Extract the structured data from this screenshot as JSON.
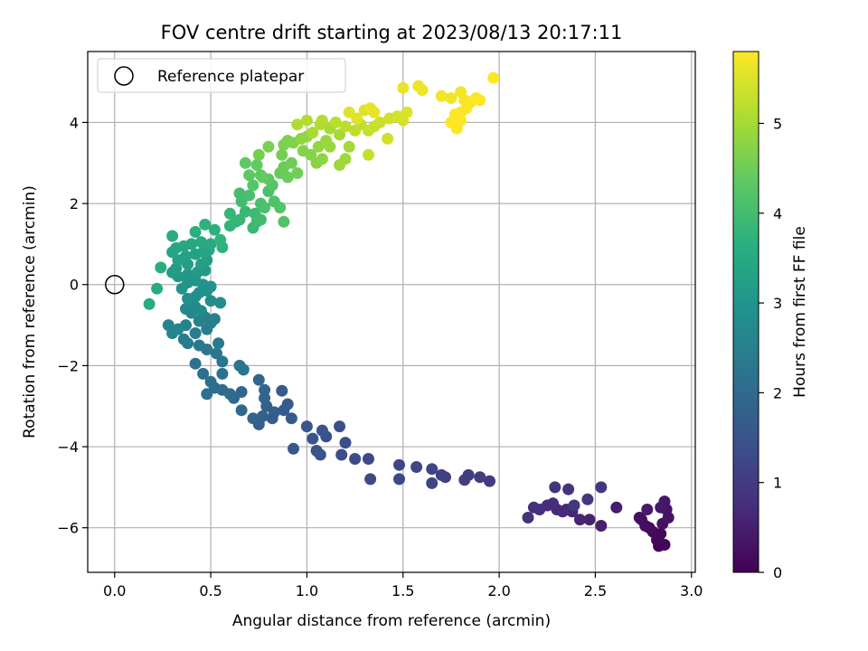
{
  "chart_data": {
    "type": "scatter",
    "title": "FOV centre drift starting at 2023/08/13 20:17:11",
    "xlabel": "Angular distance from reference (arcmin)",
    "ylabel": "Rotation from reference (arcmin)",
    "xlim": [
      -0.14,
      3.02
    ],
    "ylim": [
      -7.1,
      5.75
    ],
    "xticks": [
      "0.0",
      "0.5",
      "1.0",
      "1.5",
      "2.0",
      "2.5",
      "3.0"
    ],
    "xtick_values": [
      0,
      0.5,
      1.0,
      1.5,
      2.0,
      2.5,
      3.0
    ],
    "yticks": [
      "−6",
      "−4",
      "−2",
      "0",
      "2",
      "4"
    ],
    "ytick_values": [
      -6,
      -4,
      -2,
      0,
      2,
      4
    ],
    "grid": true,
    "legend": {
      "placement": "top-left",
      "entries": [
        {
          "label": "Reference platepar",
          "marker": "open-circle"
        }
      ]
    },
    "reference_point": {
      "x": 0,
      "y": 0
    },
    "colorbar": {
      "label": "Hours from first FF file",
      "colormap": "viridis",
      "range": [
        0,
        5.8
      ],
      "ticks": [
        "0",
        "1",
        "2",
        "3",
        "4",
        "5"
      ],
      "tick_values": [
        0,
        1,
        2,
        3,
        4,
        5
      ]
    },
    "points": [
      [
        2.83,
        -6.45,
        0.0
      ],
      [
        2.86,
        -6.42,
        0.05
      ],
      [
        2.82,
        -6.3,
        0.1
      ],
      [
        2.84,
        -6.15,
        0.12
      ],
      [
        2.8,
        -6.1,
        0.15
      ],
      [
        2.78,
        -6.0,
        0.18
      ],
      [
        2.76,
        -5.95,
        0.2
      ],
      [
        2.74,
        -5.8,
        0.22
      ],
      [
        2.73,
        -5.75,
        0.25
      ],
      [
        2.85,
        -5.9,
        0.28
      ],
      [
        2.88,
        -5.75,
        0.3
      ],
      [
        2.87,
        -5.55,
        0.32
      ],
      [
        2.86,
        -5.35,
        0.35
      ],
      [
        2.84,
        -5.5,
        0.38
      ],
      [
        2.77,
        -5.55,
        0.4
      ],
      [
        2.61,
        -5.5,
        0.45
      ],
      [
        2.53,
        -5.95,
        0.5
      ],
      [
        2.47,
        -5.8,
        0.55
      ],
      [
        2.42,
        -5.8,
        0.6
      ],
      [
        2.38,
        -5.6,
        0.62
      ],
      [
        2.35,
        -5.55,
        0.65
      ],
      [
        2.33,
        -5.6,
        0.68
      ],
      [
        2.3,
        -5.55,
        0.7
      ],
      [
        2.28,
        -5.4,
        0.72
      ],
      [
        2.25,
        -5.45,
        0.75
      ],
      [
        2.21,
        -5.55,
        0.78
      ],
      [
        2.18,
        -5.5,
        0.8
      ],
      [
        2.15,
        -5.75,
        0.82
      ],
      [
        2.36,
        -5.05,
        0.85
      ],
      [
        2.29,
        -5.0,
        0.88
      ],
      [
        2.46,
        -5.3,
        0.9
      ],
      [
        2.39,
        -5.45,
        0.92
      ],
      [
        2.53,
        -5.0,
        0.95
      ],
      [
        1.95,
        -4.85,
        1.0
      ],
      [
        1.9,
        -4.75,
        1.02
      ],
      [
        1.84,
        -4.7,
        1.05
      ],
      [
        1.82,
        -4.82,
        1.08
      ],
      [
        1.72,
        -4.75,
        1.1
      ],
      [
        1.7,
        -4.7,
        1.12
      ],
      [
        1.65,
        -4.9,
        1.15
      ],
      [
        1.65,
        -4.55,
        1.18
      ],
      [
        1.57,
        -4.5,
        1.2
      ],
      [
        1.48,
        -4.45,
        1.22
      ],
      [
        1.48,
        -4.8,
        1.25
      ],
      [
        1.33,
        -4.8,
        1.28
      ],
      [
        1.32,
        -4.3,
        1.3
      ],
      [
        1.25,
        -4.3,
        1.32
      ],
      [
        1.18,
        -4.2,
        1.35
      ],
      [
        1.2,
        -3.9,
        1.38
      ],
      [
        1.17,
        -3.5,
        1.4
      ],
      [
        1.1,
        -3.75,
        1.42
      ],
      [
        1.07,
        -4.2,
        1.45
      ],
      [
        1.05,
        -4.1,
        1.48
      ],
      [
        1.03,
        -3.8,
        1.5
      ],
      [
        1.08,
        -3.6,
        1.52
      ],
      [
        1.0,
        -3.5,
        1.55
      ],
      [
        0.93,
        -4.05,
        1.58
      ],
      [
        0.92,
        -3.3,
        1.6
      ],
      [
        0.88,
        -3.1,
        1.62
      ],
      [
        0.9,
        -2.95,
        1.65
      ],
      [
        0.87,
        -2.62,
        1.68
      ],
      [
        0.83,
        -3.15,
        1.7
      ],
      [
        0.82,
        -3.3,
        1.72
      ],
      [
        0.79,
        -3.0,
        1.75
      ],
      [
        0.77,
        -3.25,
        1.78
      ],
      [
        0.75,
        -3.45,
        1.8
      ],
      [
        0.72,
        -3.3,
        1.82
      ],
      [
        0.78,
        -2.8,
        1.85
      ],
      [
        0.78,
        -2.6,
        1.88
      ],
      [
        0.75,
        -2.35,
        1.9
      ],
      [
        0.66,
        -2.65,
        1.92
      ],
      [
        0.66,
        -3.1,
        1.95
      ],
      [
        0.62,
        -2.8,
        1.98
      ],
      [
        0.6,
        -2.7,
        2.0
      ],
      [
        0.56,
        -2.6,
        2.02
      ],
      [
        0.52,
        -2.55,
        2.05
      ],
      [
        0.48,
        -2.7,
        2.08
      ],
      [
        0.5,
        -2.4,
        2.1
      ],
      [
        0.46,
        -2.2,
        2.12
      ],
      [
        0.42,
        -1.95,
        2.15
      ],
      [
        0.56,
        -2.2,
        2.18
      ],
      [
        0.65,
        -2.0,
        2.2
      ],
      [
        0.67,
        -2.1,
        2.22
      ],
      [
        0.56,
        -1.9,
        2.25
      ],
      [
        0.53,
        -1.7,
        2.28
      ],
      [
        0.48,
        -1.6,
        2.3
      ],
      [
        0.54,
        -1.45,
        2.32
      ],
      [
        0.44,
        -1.5,
        2.35
      ],
      [
        0.38,
        -1.45,
        2.38
      ],
      [
        0.36,
        -1.35,
        2.4
      ],
      [
        0.42,
        -1.2,
        2.42
      ],
      [
        0.48,
        -1.1,
        2.45
      ],
      [
        0.5,
        -0.95,
        2.48
      ],
      [
        0.52,
        -0.85,
        2.5
      ],
      [
        0.47,
        -0.8,
        2.52
      ],
      [
        0.44,
        -0.9,
        2.55
      ],
      [
        0.37,
        -1.0,
        2.58
      ],
      [
        0.3,
        -1.2,
        2.6
      ],
      [
        0.28,
        -1.0,
        2.62
      ],
      [
        0.33,
        -1.1,
        2.65
      ],
      [
        0.4,
        -0.7,
        2.68
      ],
      [
        0.37,
        -0.6,
        2.7
      ],
      [
        0.42,
        -0.55,
        2.72
      ],
      [
        0.45,
        -0.65,
        2.75
      ],
      [
        0.5,
        -0.4,
        2.78
      ],
      [
        0.55,
        -0.45,
        2.8
      ],
      [
        0.42,
        -0.3,
        2.82
      ],
      [
        0.38,
        -0.35,
        2.85
      ],
      [
        0.44,
        -0.2,
        2.88
      ],
      [
        0.48,
        -0.15,
        2.9
      ],
      [
        0.5,
        -0.05,
        2.92
      ],
      [
        0.46,
        0.0,
        2.95
      ],
      [
        0.42,
        0.1,
        2.98
      ],
      [
        0.38,
        0.05,
        3.0
      ],
      [
        0.35,
        -0.1,
        3.02
      ],
      [
        0.33,
        0.2,
        3.05
      ],
      [
        0.38,
        0.25,
        3.08
      ],
      [
        0.43,
        0.3,
        3.1
      ],
      [
        0.47,
        0.35,
        3.12
      ],
      [
        0.3,
        0.3,
        3.15
      ],
      [
        0.32,
        0.4,
        3.18
      ],
      [
        0.38,
        0.5,
        3.2
      ],
      [
        0.45,
        0.5,
        3.22
      ],
      [
        0.48,
        0.6,
        3.25
      ],
      [
        0.33,
        0.6,
        3.28
      ],
      [
        0.37,
        0.7,
        3.3
      ],
      [
        0.42,
        0.75,
        3.32
      ],
      [
        0.46,
        0.8,
        3.35
      ],
      [
        0.49,
        0.85,
        3.38
      ],
      [
        0.3,
        0.8,
        3.4
      ],
      [
        0.32,
        0.9,
        3.42
      ],
      [
        0.36,
        0.95,
        3.45
      ],
      [
        0.4,
        1.0,
        3.48
      ],
      [
        0.45,
        1.05,
        3.5
      ],
      [
        0.5,
        1.0,
        3.52
      ],
      [
        0.22,
        -0.1,
        3.55
      ],
      [
        0.18,
        -0.48,
        3.58
      ],
      [
        0.24,
        0.42,
        3.6
      ],
      [
        0.3,
        1.2,
        3.62
      ],
      [
        0.42,
        1.3,
        3.65
      ],
      [
        0.52,
        1.35,
        3.68
      ],
      [
        0.47,
        1.48,
        3.7
      ],
      [
        0.56,
        0.92,
        3.72
      ],
      [
        0.55,
        1.1,
        3.75
      ],
      [
        0.6,
        1.45,
        3.78
      ],
      [
        0.63,
        1.55,
        3.8
      ],
      [
        0.6,
        1.75,
        3.82
      ],
      [
        0.65,
        1.6,
        3.85
      ],
      [
        0.68,
        1.8,
        3.88
      ],
      [
        0.72,
        1.4,
        3.9
      ],
      [
        0.74,
        1.55,
        3.92
      ],
      [
        0.73,
        1.75,
        3.95
      ],
      [
        0.76,
        1.6,
        3.98
      ],
      [
        0.66,
        2.05,
        4.0
      ],
      [
        0.65,
        2.25,
        4.02
      ],
      [
        0.7,
        2.2,
        4.05
      ],
      [
        0.76,
        2.0,
        4.08
      ],
      [
        0.8,
        2.3,
        4.1
      ],
      [
        0.78,
        1.9,
        4.12
      ],
      [
        0.83,
        2.05,
        4.15
      ],
      [
        0.86,
        1.9,
        4.18
      ],
      [
        0.88,
        1.55,
        4.2
      ],
      [
        0.82,
        2.45,
        4.22
      ],
      [
        0.72,
        2.45,
        4.25
      ],
      [
        0.76,
        2.7,
        4.28
      ],
      [
        0.8,
        2.6,
        4.3
      ],
      [
        0.7,
        2.7,
        4.32
      ],
      [
        0.68,
        3.0,
        4.35
      ],
      [
        0.74,
        2.95,
        4.38
      ],
      [
        0.77,
        2.65,
        4.4
      ],
      [
        0.86,
        2.75,
        4.42
      ],
      [
        0.9,
        2.65,
        4.45
      ],
      [
        0.88,
        2.9,
        4.48
      ],
      [
        0.92,
        3.0,
        4.5
      ],
      [
        0.95,
        2.75,
        4.52
      ],
      [
        0.87,
        3.2,
        4.55
      ],
      [
        0.75,
        3.2,
        4.58
      ],
      [
        0.8,
        3.4,
        4.6
      ],
      [
        0.88,
        3.45,
        4.62
      ],
      [
        0.9,
        3.55,
        4.65
      ],
      [
        0.93,
        3.5,
        4.68
      ],
      [
        0.98,
        3.3,
        4.7
      ],
      [
        1.02,
        3.2,
        4.72
      ],
      [
        1.05,
        3.0,
        4.75
      ],
      [
        1.08,
        3.1,
        4.78
      ],
      [
        0.97,
        3.6,
        4.8
      ],
      [
        1.0,
        3.65,
        4.82
      ],
      [
        1.06,
        3.4,
        4.85
      ],
      [
        1.1,
        3.55,
        4.88
      ],
      [
        1.12,
        3.4,
        4.9
      ],
      [
        1.17,
        2.95,
        4.92
      ],
      [
        1.2,
        3.1,
        4.95
      ],
      [
        1.22,
        3.4,
        4.98
      ],
      [
        1.17,
        3.7,
        5.0
      ],
      [
        1.12,
        3.85,
        5.02
      ],
      [
        1.03,
        3.75,
        5.05
      ],
      [
        1.07,
        3.95,
        5.08
      ],
      [
        0.95,
        3.95,
        5.1
      ],
      [
        1.0,
        4.05,
        5.12
      ],
      [
        1.08,
        4.05,
        5.15
      ],
      [
        1.15,
        4.0,
        5.18
      ],
      [
        1.2,
        3.9,
        5.2
      ],
      [
        1.25,
        3.8,
        5.22
      ],
      [
        1.28,
        3.95,
        5.25
      ],
      [
        1.32,
        3.8,
        5.28
      ],
      [
        1.32,
        3.2,
        5.3
      ],
      [
        1.35,
        3.9,
        5.32
      ],
      [
        1.38,
        4.0,
        5.35
      ],
      [
        1.43,
        4.1,
        5.38
      ],
      [
        1.42,
        3.6,
        5.4
      ],
      [
        1.47,
        4.15,
        5.42
      ],
      [
        1.5,
        4.05,
        5.45
      ],
      [
        1.52,
        4.25,
        5.48
      ],
      [
        1.3,
        4.3,
        5.5
      ],
      [
        1.22,
        4.25,
        5.52
      ],
      [
        1.26,
        4.1,
        5.55
      ],
      [
        1.33,
        4.35,
        5.58
      ],
      [
        1.35,
        4.25,
        5.6
      ],
      [
        1.5,
        4.85,
        5.62
      ],
      [
        1.58,
        4.9,
        5.64
      ],
      [
        1.6,
        4.8,
        5.66
      ],
      [
        1.7,
        4.65,
        5.68
      ],
      [
        1.75,
        4.6,
        5.7
      ],
      [
        1.8,
        4.75,
        5.72
      ],
      [
        1.82,
        4.55,
        5.74
      ],
      [
        1.85,
        4.5,
        5.76
      ],
      [
        1.88,
        4.6,
        5.78
      ],
      [
        1.77,
        4.2,
        5.8
      ],
      [
        1.8,
        4.05,
        5.8
      ],
      [
        1.78,
        3.85,
        5.8
      ],
      [
        1.75,
        4.0,
        5.8
      ],
      [
        1.83,
        4.35,
        5.8
      ],
      [
        1.8,
        4.25,
        5.8
      ],
      [
        1.9,
        4.55,
        5.8
      ],
      [
        1.97,
        5.1,
        5.8
      ]
    ]
  }
}
